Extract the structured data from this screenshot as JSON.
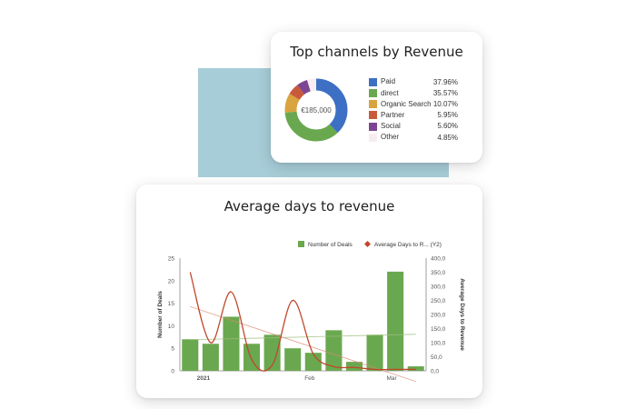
{
  "channels": {
    "title": "Top channels by Revenue",
    "center_label": "€185,000",
    "legend": [
      {
        "name": "Paid",
        "value_label": "37.96%"
      },
      {
        "name": "direct",
        "value_label": "35.57%"
      },
      {
        "name": "Organic Search",
        "value_label": "10.07%"
      },
      {
        "name": "Partner",
        "value_label": "5.95%"
      },
      {
        "name": "Social",
        "value_label": "5.60%"
      },
      {
        "name": "Other",
        "value_label": "4.85%"
      }
    ]
  },
  "deals": {
    "title": "Average days to revenue"
  },
  "chart_data": [
    {
      "type": "pie",
      "title": "Top channels by Revenue",
      "center_label": "€185,000",
      "donut": true,
      "categories": [
        "Paid",
        "direct",
        "Organic Search",
        "Partner",
        "Social",
        "Other"
      ],
      "values": [
        37.96,
        35.57,
        10.07,
        5.95,
        5.6,
        4.85
      ],
      "colors": [
        "#3d6fc4",
        "#6aa84f",
        "#d9a33f",
        "#c85a3b",
        "#7d4591",
        "#f8ecf3"
      ],
      "legend_position": "right"
    },
    {
      "type": "bar",
      "title": "Average days to revenue",
      "categories": [
        "1",
        "2",
        "3",
        "4",
        "5",
        "6",
        "7",
        "8",
        "9",
        "10",
        "11",
        "12"
      ],
      "x_tick_labels": [
        {
          "index": 1,
          "label": "2021"
        },
        {
          "index": 6,
          "label": "Feb"
        },
        {
          "index": 10,
          "label": "Mar"
        }
      ],
      "ylabel": "Number of Deals",
      "ylim": [
        0,
        25
      ],
      "yticks": [
        0,
        5,
        10,
        15,
        20,
        25
      ],
      "y2label": "Average Days to Revenue",
      "y2lim": [
        0,
        400
      ],
      "y2ticks": [
        0,
        50,
        100,
        150,
        200,
        250,
        300,
        350,
        400
      ],
      "y2tick_labels": [
        "0,0",
        "50,0",
        "100,0",
        "150,0",
        "200,0",
        "250,0",
        "300,0",
        "350,0",
        "400,0"
      ],
      "series": [
        {
          "name": "Number of Deals",
          "type": "bar",
          "axis": "y",
          "values": [
            7,
            6,
            12,
            6,
            8,
            5,
            4,
            9,
            2,
            8,
            22,
            1
          ]
        },
        {
          "name": "Average Days to R... (Y2)",
          "type": "line",
          "axis": "y2",
          "values": [
            350,
            100,
            280,
            40,
            20,
            250,
            60,
            15,
            12,
            5,
            5,
            5
          ]
        }
      ],
      "trendlines": true,
      "colors": {
        "bars": "#6aa84f",
        "line": "#c0472b"
      },
      "legend_position": "top-right"
    }
  ]
}
